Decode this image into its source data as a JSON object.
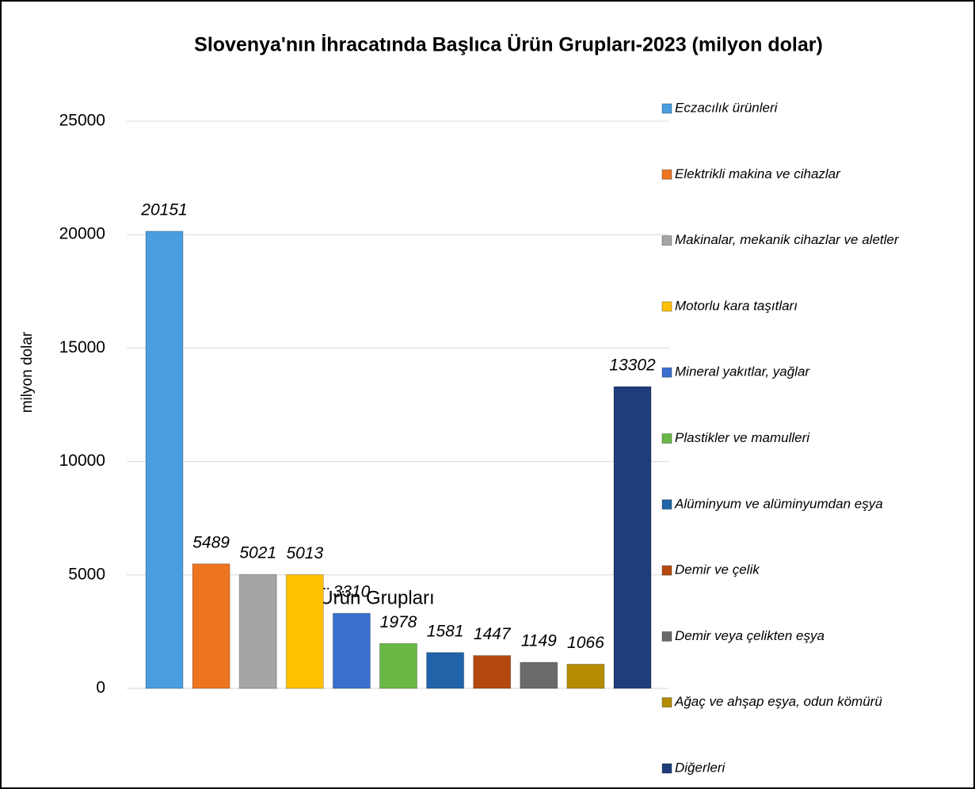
{
  "chart_data": {
    "type": "bar",
    "title": "Slovenya'nın İhracatında Başlıca Ürün Grupları-2023 (milyon dolar)",
    "x_label": "Ürün Grupları",
    "y_label": "milyon dolar",
    "ylim": [
      0,
      25000
    ],
    "yticks": [
      0,
      5000,
      10000,
      15000,
      20000,
      25000
    ],
    "grid": true,
    "legend": "right",
    "series": [
      {
        "name": "Eczacılık ürünleri",
        "color": "#4a9ee0",
        "values": [
          20151
        ]
      },
      {
        "name": "Elektrikli makina ve cihazlar",
        "color": "#ee7420",
        "values": [
          5489
        ]
      },
      {
        "name": "Makinalar, mekanik cihazlar ve aletler",
        "color": "#a5a5a5",
        "values": [
          5021
        ]
      },
      {
        "name": "Motorlu kara taşıtları",
        "color": "#ffc000",
        "values": [
          5013
        ]
      },
      {
        "name": "Mineral yakıtlar, yağlar",
        "color": "#3a6fd0",
        "values": [
          3310
        ]
      },
      {
        "name": "Plastikler ve mamulleri",
        "color": "#6ab845",
        "values": [
          1978
        ]
      },
      {
        "name": "Alüminyum ve alüminyumdan eşya",
        "color": "#2063a8",
        "values": [
          1581
        ]
      },
      {
        "name": "Demir ve çelik",
        "color": "#b5480f",
        "values": [
          1447
        ]
      },
      {
        "name": "Demir veya çelikten eşya",
        "color": "#6a6a6a",
        "values": [
          1149
        ]
      },
      {
        "name": "Ağaç ve ahşap eşya, odun kömürü",
        "color": "#b58c00",
        "values": [
          1066
        ]
      },
      {
        "name": "Diğerleri",
        "color": "#1e3d7a",
        "values": [
          13302
        ]
      }
    ]
  }
}
